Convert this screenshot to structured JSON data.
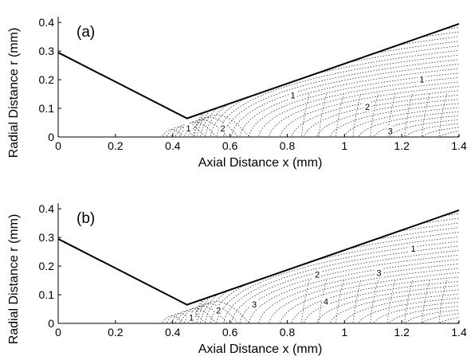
{
  "chart_data": [
    {
      "type": "contour",
      "panel_label": "(a)",
      "xlabel": "Axial Distance  x (mm)",
      "ylabel": "Radial Distance  r (mm)",
      "xlim": [
        0,
        1.4
      ],
      "ylim": [
        0,
        0.42
      ],
      "x_ticks": [
        0,
        0.2,
        0.4,
        0.6,
        0.8,
        1,
        1.2,
        1.4
      ],
      "y_ticks": [
        0,
        0.1,
        0.2,
        0.3,
        0.4
      ],
      "x_tick_labels": [
        "0",
        "0.2",
        "0.4",
        "0.6",
        "0.8",
        "1",
        "1.2",
        "1.4"
      ],
      "y_tick_labels": [
        "0",
        "0.1",
        "0.2",
        "0.3",
        "0.4"
      ],
      "nozzle_wall": [
        [
          0,
          0.295
        ],
        [
          0.45,
          0.065
        ],
        [
          1.4,
          0.395
        ]
      ],
      "contour_labels": [
        {
          "text": "1",
          "x": 0.455,
          "y": 0.02
        },
        {
          "text": "2",
          "x": 0.575,
          "y": 0.02
        },
        {
          "text": "1",
          "x": 0.82,
          "y": 0.135
        },
        {
          "text": "2",
          "x": 1.08,
          "y": 0.095
        },
        {
          "text": "1",
          "x": 1.27,
          "y": 0.19
        },
        {
          "text": "3",
          "x": 1.16,
          "y": 0.01
        }
      ]
    },
    {
      "type": "contour",
      "panel_label": "(b)",
      "xlabel": "Axial Distance  x (mm)",
      "ylabel": "Radial Distance  r (mm)",
      "xlim": [
        0,
        1.4
      ],
      "ylim": [
        0,
        0.42
      ],
      "x_ticks": [
        0,
        0.2,
        0.4,
        0.6,
        0.8,
        1,
        1.2,
        1.4
      ],
      "y_ticks": [
        0,
        0.1,
        0.2,
        0.3,
        0.4
      ],
      "x_tick_labels": [
        "0",
        "0.2",
        "0.4",
        "0.6",
        "0.8",
        "1",
        "1.2",
        "1.4"
      ],
      "y_tick_labels": [
        "0",
        "0.1",
        "0.2",
        "0.3",
        "0.4"
      ],
      "nozzle_wall": [
        [
          0,
          0.295
        ],
        [
          0.45,
          0.065
        ],
        [
          1.4,
          0.395
        ]
      ],
      "contour_labels": [
        {
          "text": "1",
          "x": 0.465,
          "y": 0.01
        },
        {
          "text": "2",
          "x": 0.56,
          "y": 0.035
        },
        {
          "text": "3",
          "x": 0.685,
          "y": 0.055
        },
        {
          "text": "2",
          "x": 0.905,
          "y": 0.16
        },
        {
          "text": "3",
          "x": 1.12,
          "y": 0.165
        },
        {
          "text": "4",
          "x": 0.935,
          "y": 0.065
        },
        {
          "text": "1",
          "x": 1.24,
          "y": 0.25
        }
      ]
    }
  ]
}
